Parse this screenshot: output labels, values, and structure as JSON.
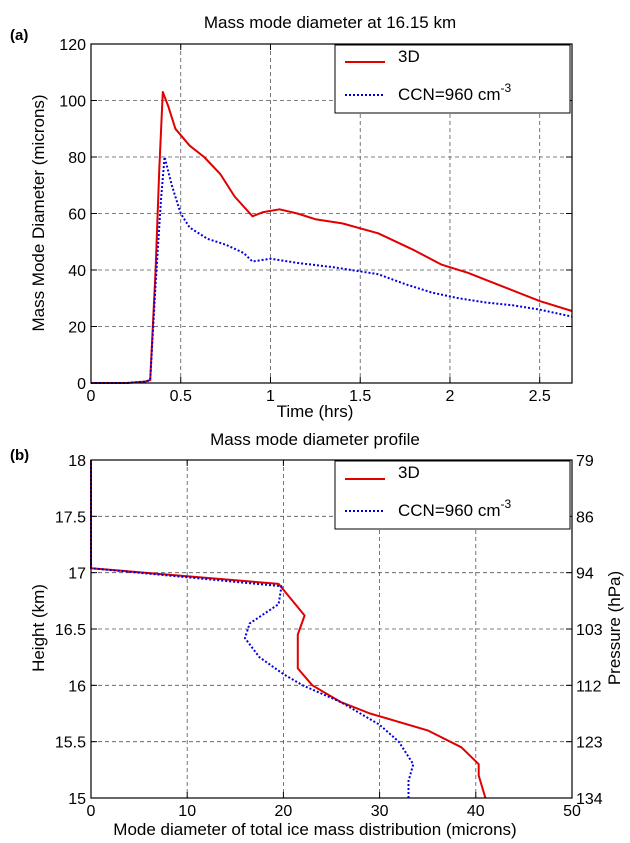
{
  "chart_data": [
    {
      "panel_label": "(a)",
      "type": "line",
      "title": "Mass mode diameter at 16.15 km",
      "xlabel": "Time (hrs)",
      "ylabel": "Mass Mode Diameter (microns)",
      "xlim": [
        0,
        2.68
      ],
      "ylim": [
        0,
        120
      ],
      "xticks": [
        0,
        0.5,
        1,
        1.5,
        2,
        2.5
      ],
      "xtick_labels": [
        "0",
        "0.5",
        "1",
        "1.5",
        "2",
        "2.5"
      ],
      "yticks": [
        0,
        20,
        40,
        60,
        80,
        100,
        120
      ],
      "ytick_labels": [
        "0",
        "20",
        "40",
        "60",
        "80",
        "100",
        "120"
      ],
      "grid": true,
      "legend_position": "top-right",
      "series": [
        {
          "name": "3D",
          "color": "#e00000",
          "dash": "solid",
          "points": [
            [
              0,
              0
            ],
            [
              0.2,
              0
            ],
            [
              0.3,
              0.5
            ],
            [
              0.33,
              1
            ],
            [
              0.36,
              40
            ],
            [
              0.38,
              75
            ],
            [
              0.4,
              103
            ],
            [
              0.43,
              98
            ],
            [
              0.47,
              90
            ],
            [
              0.55,
              84
            ],
            [
              0.63,
              80
            ],
            [
              0.72,
              74
            ],
            [
              0.8,
              66
            ],
            [
              0.9,
              59
            ],
            [
              0.96,
              60.5
            ],
            [
              1.05,
              61.5
            ],
            [
              1.15,
              60
            ],
            [
              1.25,
              58
            ],
            [
              1.4,
              56.5
            ],
            [
              1.6,
              53
            ],
            [
              1.8,
              47
            ],
            [
              1.95,
              42
            ],
            [
              2.1,
              39
            ],
            [
              2.3,
              34
            ],
            [
              2.5,
              29
            ],
            [
              2.68,
              25.5
            ]
          ]
        },
        {
          "name": "CCN=960 cm",
          "name_sup": "-3",
          "color": "#0000e0",
          "dash": "dotted",
          "points": [
            [
              0,
              0
            ],
            [
              0.2,
              0
            ],
            [
              0.3,
              0.5
            ],
            [
              0.33,
              1
            ],
            [
              0.36,
              35
            ],
            [
              0.39,
              65
            ],
            [
              0.41,
              80
            ],
            [
              0.45,
              70
            ],
            [
              0.5,
              60
            ],
            [
              0.55,
              55
            ],
            [
              0.65,
              51
            ],
            [
              0.75,
              49
            ],
            [
              0.85,
              46
            ],
            [
              0.9,
              43
            ],
            [
              1.0,
              44
            ],
            [
              1.15,
              42.5
            ],
            [
              1.35,
              41
            ],
            [
              1.6,
              38.5
            ],
            [
              1.75,
              35
            ],
            [
              1.9,
              32
            ],
            [
              2.05,
              30
            ],
            [
              2.2,
              28.5
            ],
            [
              2.35,
              27.5
            ],
            [
              2.5,
              26
            ],
            [
              2.68,
              23.5
            ]
          ]
        }
      ]
    },
    {
      "panel_label": "(b)",
      "type": "line",
      "title": "Mass mode diameter profile",
      "xlabel": "Mode diameter of total ice mass distribution (microns)",
      "ylabel": "Height (km)",
      "ylabel_right": "Pressure (hPa)",
      "xlim": [
        0,
        50
      ],
      "ylim": [
        15,
        18
      ],
      "xticks": [
        0,
        10,
        20,
        30,
        40,
        50
      ],
      "xtick_labels": [
        "0",
        "10",
        "20",
        "30",
        "40",
        "50"
      ],
      "yticks": [
        15,
        15.5,
        16,
        16.5,
        17,
        17.5,
        18
      ],
      "ytick_labels": [
        "15",
        "15.5",
        "16",
        "16.5",
        "17",
        "17.5",
        "18"
      ],
      "yticks_right_labels": [
        "134",
        "123",
        "112",
        "103",
        "94",
        "86",
        "79"
      ],
      "grid": true,
      "legend_position": "top-right",
      "series": [
        {
          "name": "3D",
          "color": "#e00000",
          "dash": "solid",
          "points": [
            [
              41,
              15
            ],
            [
              40.3,
              15.2
            ],
            [
              40.3,
              15.3
            ],
            [
              38.5,
              15.45
            ],
            [
              35,
              15.6
            ],
            [
              29,
              15.75
            ],
            [
              26,
              15.85
            ],
            [
              23,
              16.0
            ],
            [
              21.5,
              16.15
            ],
            [
              21.5,
              16.45
            ],
            [
              22.2,
              16.62
            ],
            [
              19.5,
              16.9
            ],
            [
              0,
              17.04
            ],
            [
              0,
              18
            ]
          ]
        },
        {
          "name": "CCN=960 cm",
          "name_sup": "-3",
          "color": "#0000e0",
          "dash": "dotted",
          "points": [
            [
              33,
              15
            ],
            [
              33,
              15.15
            ],
            [
              33.5,
              15.3
            ],
            [
              32,
              15.5
            ],
            [
              30,
              15.65
            ],
            [
              26,
              15.85
            ],
            [
              22,
              16.0
            ],
            [
              20,
              16.1
            ],
            [
              17.5,
              16.25
            ],
            [
              16,
              16.42
            ],
            [
              16.5,
              16.55
            ],
            [
              19.5,
              16.72
            ],
            [
              19.8,
              16.88
            ],
            [
              0,
              17.04
            ],
            [
              0,
              18
            ]
          ]
        }
      ]
    }
  ]
}
